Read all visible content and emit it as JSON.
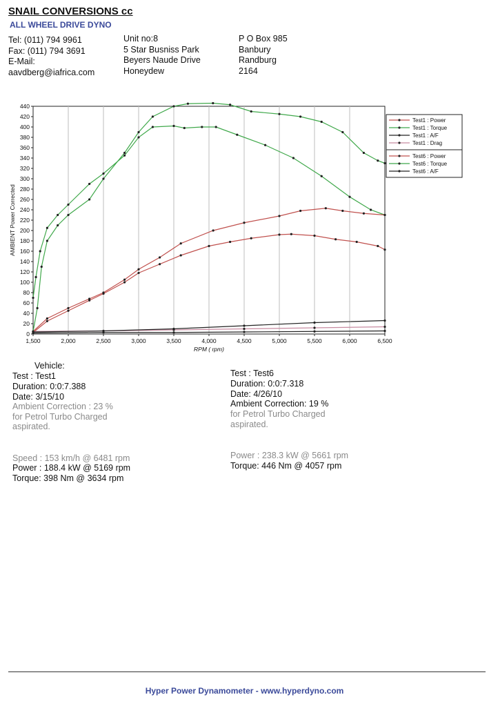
{
  "header": {
    "company": "SNAIL CONVERSIONS cc",
    "subtitle": "ALL WHEEL DRIVE DYNO",
    "col1": [
      "Tel: (011) 794 9961",
      "Fax: (011) 794 3691",
      "E-Mail:",
      "aavdberg@iafrica.com"
    ],
    "col2": [
      "Unit no:8",
      "5 Star Busniss Park",
      "Beyers Naude Drive",
      "Honeydew"
    ],
    "col3": [
      "P O Box 985",
      "Banbury",
      "Randburg",
      "2164"
    ]
  },
  "colors": {
    "red": "#c0504d",
    "green": "#3fa84a",
    "black": "#222222",
    "pink": "#c78aa0",
    "brand_blue": "#3b4a9a"
  },
  "chart_data": {
    "type": "line",
    "xlabel": "RPM ( rpm)",
    "ylabel": "AMBIENT Power Corrected",
    "xlim": [
      1500,
      6500
    ],
    "ylim": [
      0,
      440
    ],
    "x_ticks": [
      "1,500",
      "2,000",
      "2,500",
      "3,000",
      "3,500",
      "4,000",
      "4,500",
      "5,000",
      "5,500",
      "6,000",
      "6,500"
    ],
    "y_ticks": [
      "0",
      "20",
      "40",
      "60",
      "80",
      "100",
      "120",
      "140",
      "160",
      "180",
      "200",
      "220",
      "240",
      "260",
      "280",
      "300",
      "320",
      "340",
      "360",
      "380",
      "400",
      "420",
      "440"
    ],
    "grid": "vertical",
    "legend_position": "right",
    "legend_group1": [
      "Test1 : Power",
      "Test1 : Torque",
      "Test1 : A/F",
      "Test1 : Drag"
    ],
    "legend_group2": [
      "Test6 : Power",
      "Test6 : Torque",
      "Test6 : A/F"
    ],
    "series": [
      {
        "name": "Test1 : Power",
        "color": "red",
        "x": [
          1500,
          1700,
          2000,
          2300,
          2500,
          2800,
          3000,
          3300,
          3600,
          4000,
          4300,
          4600,
          5000,
          5170,
          5500,
          5800,
          6100,
          6400,
          6500
        ],
        "y": [
          3,
          25,
          45,
          65,
          78,
          100,
          118,
          135,
          152,
          170,
          178,
          185,
          192,
          193,
          190,
          183,
          178,
          170,
          163
        ]
      },
      {
        "name": "Test1 : Torque",
        "color": "green",
        "x": [
          1500,
          1540,
          1600,
          1700,
          1850,
          2000,
          2300,
          2500,
          2800,
          3000,
          3200,
          3500,
          3650,
          3900,
          4100,
          4400,
          4800,
          5200,
          5600,
          6000,
          6300,
          6500
        ],
        "y": [
          70,
          110,
          160,
          205,
          230,
          250,
          290,
          310,
          345,
          380,
          400,
          402,
          398,
          400,
          400,
          385,
          365,
          340,
          305,
          265,
          240,
          230
        ]
      },
      {
        "name": "Test1 : A/F",
        "color": "black",
        "x": [
          1500,
          2500,
          3500,
          4500,
          5500,
          6500
        ],
        "y": [
          2,
          3,
          3,
          4,
          5,
          6
        ]
      },
      {
        "name": "Test1 : Drag",
        "color": "pink",
        "x": [
          1500,
          2500,
          3500,
          4500,
          5500,
          6500
        ],
        "y": [
          5,
          6,
          8,
          10,
          12,
          14
        ]
      },
      {
        "name": "Test6 : Power",
        "color": "red",
        "x": [
          1500,
          1700,
          2000,
          2300,
          2500,
          2800,
          3000,
          3300,
          3600,
          4060,
          4500,
          5000,
          5300,
          5660,
          5900,
          6200,
          6500
        ],
        "y": [
          5,
          30,
          50,
          68,
          80,
          105,
          125,
          148,
          175,
          200,
          215,
          228,
          238,
          243,
          238,
          233,
          230
        ]
      },
      {
        "name": "Test6 : Torque",
        "color": "green",
        "x": [
          1500,
          1560,
          1620,
          1700,
          1850,
          2000,
          2300,
          2500,
          2800,
          3000,
          3200,
          3500,
          3700,
          4057,
          4300,
          4600,
          5000,
          5300,
          5600,
          5900,
          6200,
          6400,
          6500
        ],
        "y": [
          5,
          50,
          130,
          180,
          210,
          230,
          260,
          300,
          350,
          390,
          420,
          440,
          445,
          446,
          443,
          430,
          425,
          420,
          410,
          390,
          350,
          335,
          330
        ]
      },
      {
        "name": "Test6 : A/F",
        "color": "black",
        "x": [
          1500,
          2500,
          3500,
          4500,
          5500,
          6500
        ],
        "y": [
          4,
          6,
          10,
          16,
          22,
          26
        ]
      }
    ]
  },
  "test1": {
    "vehicle_label": "Vehicle:",
    "test": "Test    : Test1",
    "duration": "Duration: 0:0:7.388",
    "date": "Date:  3/15/10",
    "ambient": "Ambient Correction : 23 %",
    "fuel": " for Petrol Turbo Charged",
    "aspirated": "aspirated.",
    "speed": "Speed : 153 km/h @ 6481 rpm",
    "power": "Power : 188.4 kW @ 5169 rpm",
    "torque": "Torque: 398 Nm @ 3634 rpm"
  },
  "test6": {
    "test": "Test    : Test6",
    "duration": "Duration: 0:0:7.318",
    "date": "Date:  4/26/10",
    "ambient": "Ambient Correction: 19 %",
    "fuel": " for Petrol Turbo Charged",
    "aspirated": "aspirated.",
    "power": "Power : 238.3 kW @ 5661 rpm",
    "torque": "Torque: 446 Nm @ 4057 rpm"
  },
  "footer": "Hyper Power Dynamometer  -  www.hyperdyno.com"
}
